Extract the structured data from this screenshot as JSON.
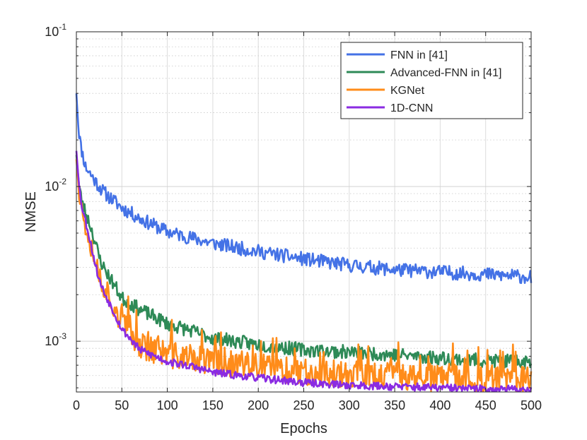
{
  "chart_data": {
    "type": "line",
    "title": "",
    "xlabel": "Epochs",
    "ylabel": "NMSE",
    "xlim": [
      0,
      500
    ],
    "ylim": [
      0.00047,
      0.1
    ],
    "yscale": "log",
    "grid": true,
    "legend_position": "top-right",
    "x_ticks": [
      {
        "value": 0,
        "label": "0"
      },
      {
        "value": 50,
        "label": "50"
      },
      {
        "value": 100,
        "label": "100"
      },
      {
        "value": 150,
        "label": "150"
      },
      {
        "value": 200,
        "label": "200"
      },
      {
        "value": 250,
        "label": "250"
      },
      {
        "value": 300,
        "label": "300"
      },
      {
        "value": 350,
        "label": "350"
      },
      {
        "value": 400,
        "label": "400"
      },
      {
        "value": 450,
        "label": "450"
      },
      {
        "value": 500,
        "label": "500"
      }
    ],
    "y_ticks": [
      {
        "value": 0.1,
        "base": "10",
        "exp": "-1"
      },
      {
        "value": 0.01,
        "base": "10",
        "exp": "-2"
      },
      {
        "value": 0.001,
        "base": "10",
        "exp": "-3"
      }
    ],
    "series": [
      {
        "name": "FNN in [41]",
        "color": "#4472e6",
        "noise": 0.045,
        "seed": 11,
        "points": [
          [
            0,
            0.04
          ],
          [
            2,
            0.025
          ],
          [
            5,
            0.018
          ],
          [
            10,
            0.0135
          ],
          [
            20,
            0.011
          ],
          [
            30,
            0.0092
          ],
          [
            40,
            0.0082
          ],
          [
            50,
            0.0073
          ],
          [
            70,
            0.0062
          ],
          [
            100,
            0.0051
          ],
          [
            130,
            0.0046
          ],
          [
            150,
            0.0043
          ],
          [
            200,
            0.0038
          ],
          [
            250,
            0.0034
          ],
          [
            300,
            0.0031
          ],
          [
            350,
            0.0029
          ],
          [
            400,
            0.0028
          ],
          [
            450,
            0.0027
          ],
          [
            500,
            0.0026
          ]
        ]
      },
      {
        "name": "Advanced-FNN in [41]",
        "color": "#2e8a57",
        "noise": 0.045,
        "seed": 23,
        "points": [
          [
            0,
            0.016
          ],
          [
            3,
            0.01
          ],
          [
            6,
            0.008
          ],
          [
            10,
            0.0068
          ],
          [
            15,
            0.0057
          ],
          [
            20,
            0.0045
          ],
          [
            25,
            0.0035
          ],
          [
            30,
            0.003
          ],
          [
            40,
            0.0024
          ],
          [
            50,
            0.0019
          ],
          [
            70,
            0.0016
          ],
          [
            100,
            0.0013
          ],
          [
            130,
            0.00115
          ],
          [
            150,
            0.00105
          ],
          [
            200,
            0.00095
          ],
          [
            250,
            0.00088
          ],
          [
            300,
            0.00085
          ],
          [
            350,
            0.00082
          ],
          [
            400,
            0.00078
          ],
          [
            450,
            0.00075
          ],
          [
            500,
            0.00073
          ]
        ]
      },
      {
        "name": "KGNet",
        "color": "#ff8c1a",
        "noise": 0.09,
        "seed": 37,
        "points": [
          [
            0,
            0.015
          ],
          [
            3,
            0.009
          ],
          [
            6,
            0.007
          ],
          [
            10,
            0.0058
          ],
          [
            15,
            0.0046
          ],
          [
            20,
            0.0035
          ],
          [
            25,
            0.0027
          ],
          [
            30,
            0.0023
          ],
          [
            40,
            0.0018
          ],
          [
            50,
            0.0013
          ],
          [
            70,
            0.00095
          ],
          [
            100,
            0.00082
          ],
          [
            130,
            0.00077
          ],
          [
            150,
            0.00073
          ],
          [
            200,
            0.00068
          ],
          [
            250,
            0.00064
          ],
          [
            300,
            0.00061
          ],
          [
            350,
            0.0006
          ],
          [
            400,
            0.00058
          ],
          [
            450,
            0.00057
          ],
          [
            500,
            0.00056
          ]
        ]
      },
      {
        "name": "1D-CNN",
        "color": "#8a2be2",
        "noise": 0.025,
        "seed": 53,
        "points": [
          [
            0,
            0.017
          ],
          [
            3,
            0.01
          ],
          [
            6,
            0.0075
          ],
          [
            10,
            0.006
          ],
          [
            15,
            0.0045
          ],
          [
            20,
            0.0033
          ],
          [
            25,
            0.0025
          ],
          [
            30,
            0.0021
          ],
          [
            40,
            0.0016
          ],
          [
            50,
            0.0012
          ],
          [
            70,
            0.00088
          ],
          [
            100,
            0.00074
          ],
          [
            130,
            0.00068
          ],
          [
            150,
            0.00063
          ],
          [
            200,
            0.00058
          ],
          [
            250,
            0.00054
          ],
          [
            300,
            0.00052
          ],
          [
            350,
            0.00051
          ],
          [
            400,
            0.0005
          ],
          [
            450,
            0.00049
          ],
          [
            500,
            0.00049
          ]
        ]
      }
    ]
  }
}
